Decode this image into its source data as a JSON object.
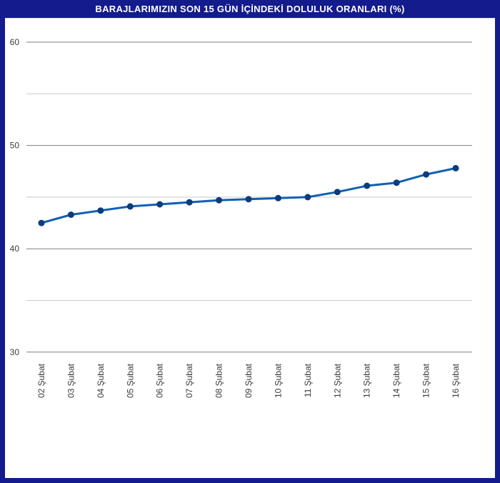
{
  "header": {
    "title": "BARAJLARIMIZIN SON 15 GÜN İÇİNDEKİ DOLULUK ORANLARI (%)"
  },
  "colors": {
    "background_navy": "#141b8c",
    "title_text": "#ffffff",
    "panel_background": "#ffffff",
    "major_gridline": "#7f7f7f",
    "minor_gridline": "#c9c9c9",
    "line": "#1060b2",
    "marker": "#0d3c7c",
    "tick_label": "#3c3c3c"
  },
  "chart_data": {
    "type": "line",
    "title": "BARAJLARIMIZIN SON 15 GÜN İÇİNDEKİ DOLULUK ORANLARI (%)",
    "xlabel": "",
    "ylabel": "",
    "categories": [
      "02 Şubat",
      "03 Şubat",
      "04 Şubat",
      "05 Şubat",
      "06 Şubat",
      "07 Şubat",
      "08 Şubat",
      "09 Şubat",
      "10 Şubat",
      "11 Şubat",
      "12 Şubat",
      "13 Şubat",
      "14 Şubat",
      "15 Şubat",
      "16 Şubat"
    ],
    "values": [
      42.5,
      43.3,
      43.7,
      44.1,
      44.3,
      44.5,
      44.7,
      44.8,
      44.9,
      45.0,
      45.5,
      46.1,
      46.4,
      47.2,
      47.8
    ],
    "ylim": [
      30,
      60
    ],
    "yticks_major": [
      30,
      40,
      50,
      60
    ],
    "yticks_minor": [
      35,
      45,
      55
    ],
    "grid": true,
    "legend": false,
    "marker_shape": "circle",
    "x_tick_rotation_degrees": 90
  }
}
